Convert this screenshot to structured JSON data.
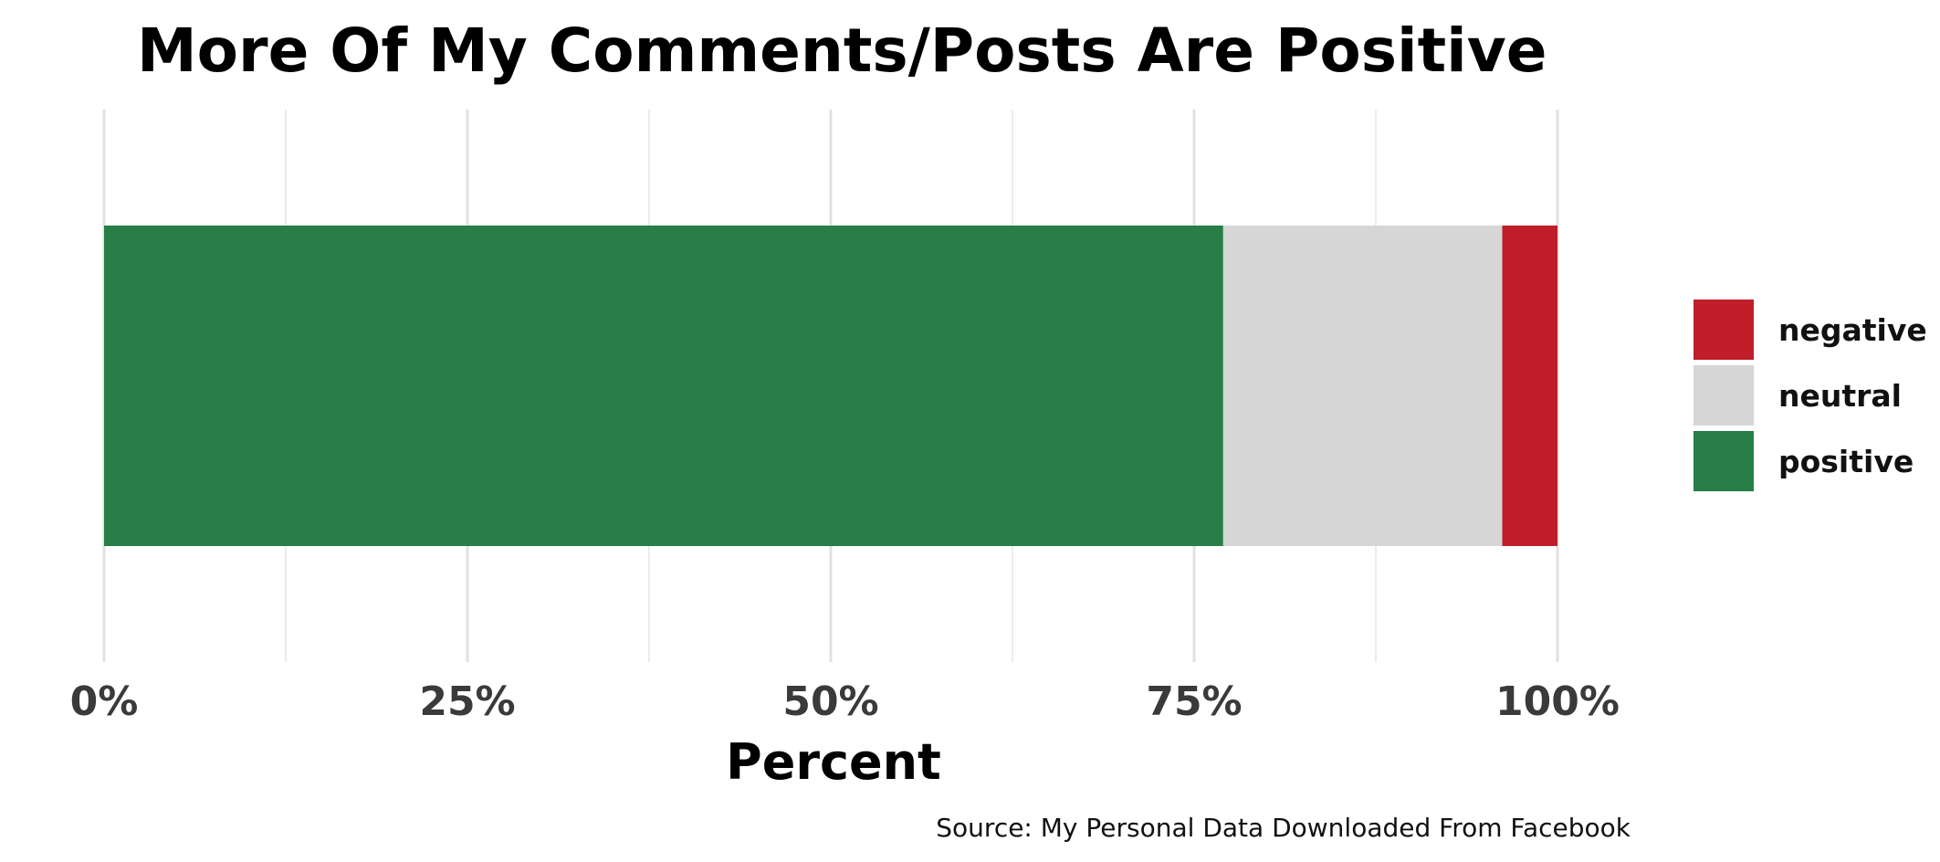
{
  "chart_data": {
    "type": "bar",
    "orientation": "horizontal",
    "stacked": true,
    "title": "More Of My Comments/Posts Are Positive",
    "xlabel": "Percent",
    "ylabel": "",
    "caption": "Source: My Personal Data Downloaded From Facebook",
    "xlim": [
      0,
      100
    ],
    "x_ticks": [
      "0%",
      "25%",
      "50%",
      "75%",
      "100%"
    ],
    "x_tick_values": [
      0,
      25,
      50,
      75,
      100
    ],
    "grid": true,
    "legend_position": "right",
    "series": [
      {
        "name": "positive",
        "value": 77,
        "color": "#277e47"
      },
      {
        "name": "neutral",
        "value": 19.2,
        "color": "#d6d6d6"
      },
      {
        "name": "negative",
        "value": 3.8,
        "color": "#bf1e2a"
      }
    ],
    "legend_order": [
      "negative",
      "neutral",
      "positive"
    ]
  }
}
